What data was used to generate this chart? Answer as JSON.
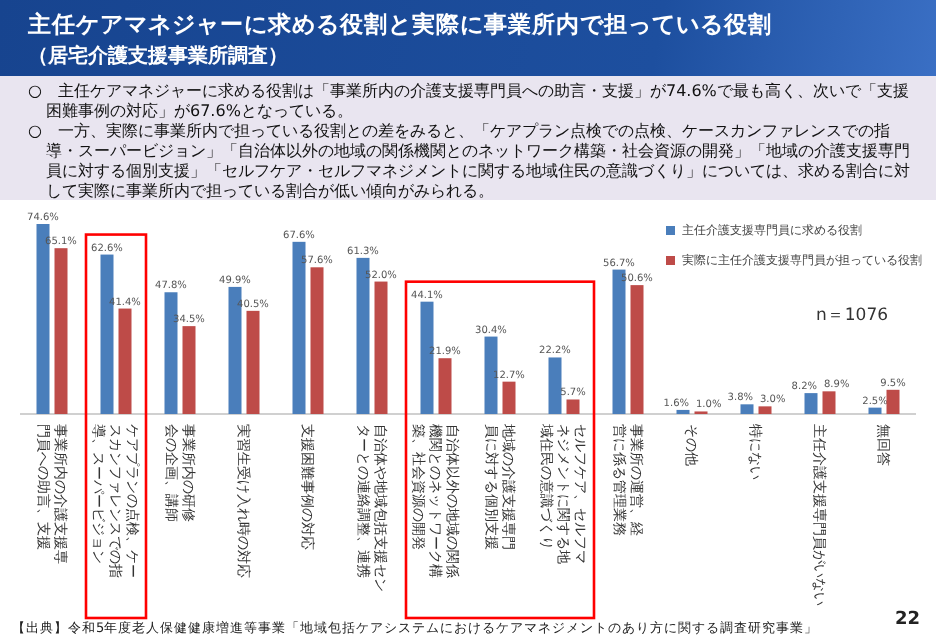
{
  "chart_data": {
    "type": "bar",
    "title": "主任ケアマネジャーに求める役割と実際に事業所内で担っている役割",
    "subtitle": "（居宅介護支援事業所調査）",
    "annotations": [
      "○　主任ケアマネジャーに求める役割は「事業所内の介護支援専門員への助言・支援」が74.6%で最も高く、次いで「支援困難事例の対応」が67.6%となっている。",
      "○　一方、実際に事業所内で担っている役割との差をみると、「ケアプラン点検での点検、ケースカンファレンスでの指導・スーパービジョン」「自治体以外の地域の関係機関とのネットワーク構築・社会資源の開発」「地域の介護支援専門員に対する個別支援」「セルフケア・セルフマネジメントに関する地域住民の意識づくり」については、求める割合に対して実際に事業所内で担っている割合が低い傾向がみられる。",
      "n＝1076",
      "【出典】令和5年度老人保健健康増進等事業「地域包括ケアシステムにおけるケアマネジメントのあり方に関する調査研究事業」",
      "22"
    ],
    "categories": [
      "事業所内の介護支援専門員への助言、支援",
      "ケアプランの点検、ケースカンファレンスでの指導、スーパービジョン",
      "事業所内の研修会の企画、講師",
      "実習生受け入れ時の対応",
      "支援困難事例の対応",
      "自治体や地域包括支援センターとの連絡調整、連携",
      "自治体以外の地域の関係機関とのネットワーク構築、社会資源の開発",
      "地域の介護支援専門員に対する個別支援",
      "セルフケア、セルフマネジメントに関する地域住民の意識づくり",
      "事業所の運営、経営に係る管理業務",
      "その他",
      "特にない",
      "主任介護支援専門員がいない",
      "無回答"
    ],
    "series": [
      {
        "name": "主任介護支援専門員に求める役割",
        "color": "#4a7ebb",
        "values": [
          74.6,
          62.6,
          47.8,
          49.9,
          67.6,
          61.3,
          44.1,
          30.4,
          22.2,
          56.7,
          1.6,
          3.8,
          8.2,
          2.5
        ],
        "value_labels": [
          "74.6%",
          "62.6%",
          "47.8%",
          "49.9%",
          "67.6%",
          "61.3%",
          "44.1%",
          "30.4%",
          "22.2%",
          "56.7%",
          "1.6%",
          "3.8%",
          "8.2%",
          "2.5%"
        ]
      },
      {
        "name": "実際に主任介護支援専門員が担っている役割",
        "color": "#be4b48",
        "values": [
          65.1,
          41.4,
          34.5,
          40.5,
          57.6,
          52.0,
          21.9,
          12.7,
          5.7,
          50.6,
          1.0,
          3.0,
          8.9,
          9.5
        ],
        "value_labels": [
          "65.1%",
          "41.4%",
          "34.5%",
          "40.5%",
          "57.6%",
          "52.0%",
          "21.9%",
          "12.7%",
          "5.7%",
          "50.6%",
          "1.0%",
          "3.0%",
          "8.9%",
          "9.5%"
        ]
      }
    ],
    "legend": "top right"
  }
}
